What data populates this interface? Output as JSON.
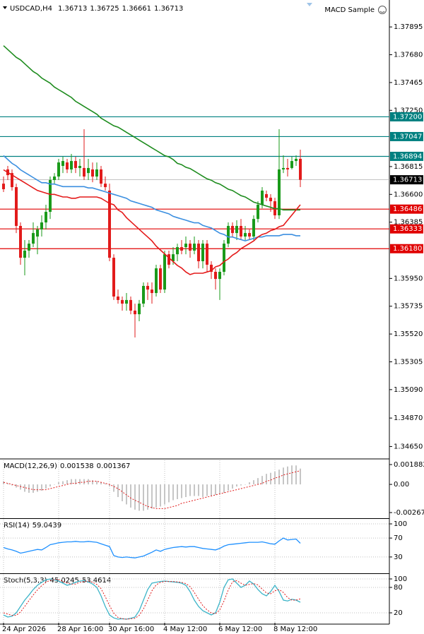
{
  "chart_data": [
    {
      "type": "candlestick",
      "title": "USDCAD,H4",
      "ohlc": [
        1.36713,
        1.36725,
        1.36661,
        1.36713
      ],
      "annotation": "MACD Sample",
      "categories": [
        "24 Apr 2026",
        null,
        null,
        null,
        null,
        null,
        null,
        null,
        null,
        null,
        null,
        null,
        null,
        "28 Apr 16:00",
        null,
        null,
        null,
        null,
        null,
        null,
        null,
        null,
        null,
        null,
        null,
        "30 Apr 16:00",
        null,
        null,
        null,
        null,
        null,
        null,
        null,
        null,
        null,
        null,
        null,
        null,
        "4 May 12:00",
        null,
        null,
        null,
        null,
        null,
        null,
        null,
        null,
        null,
        null,
        null,
        null,
        "6 May 12:00",
        null,
        null,
        null,
        null,
        null,
        null,
        null,
        null,
        null,
        null,
        null,
        null,
        "8 May 12:00",
        null,
        null,
        null,
        null,
        null,
        null
      ],
      "open": [
        1.36683,
        1.36793,
        1.36765,
        1.36656,
        1.36356,
        1.3611,
        1.36165,
        1.36219,
        1.36274,
        1.36329,
        1.36383,
        1.36465,
        1.36711,
        1.36738,
        1.3682,
        1.36847,
        1.36793,
        1.36858,
        1.36804,
        1.36804,
        1.36765,
        1.36793,
        1.36738,
        1.36793,
        1.36683,
        1.36629,
        1.3611,
        1.3581,
        1.35783,
        1.35755,
        1.35783,
        1.35701,
        1.35673,
        1.35755,
        1.35892,
        1.35864,
        1.35837,
        1.36028,
        1.35864,
        1.36137,
        1.36083,
        1.36137,
        1.36192,
        1.36192,
        1.36219,
        1.36165,
        1.36219,
        1.36083,
        1.36219,
        1.36056,
        1.36001,
        1.35946,
        1.36001,
        1.36219,
        1.36356,
        1.36301,
        1.36356,
        1.36274,
        1.36301,
        1.36274,
        1.3641,
        1.3652,
        1.36602,
        1.36574,
        1.36547,
        1.36438,
        1.36793,
        1.36804,
        1.36804,
        1.36858,
        1.36875
      ],
      "high": [
        1.36738,
        1.3682,
        1.36793,
        1.36683,
        1.36383,
        1.36247,
        1.36247,
        1.36383,
        1.36356,
        1.36438,
        1.3652,
        1.36738,
        1.36765,
        1.36875,
        1.36891,
        1.36875,
        1.36913,
        1.36891,
        1.36875,
        1.37104,
        1.36875,
        1.36847,
        1.36847,
        1.3682,
        1.36738,
        1.36683,
        1.36137,
        1.35864,
        1.3581,
        1.35837,
        1.3581,
        1.35755,
        1.35783,
        1.35919,
        1.35919,
        1.35919,
        1.36056,
        1.36056,
        1.36165,
        1.36165,
        1.36192,
        1.36219,
        1.36247,
        1.36274,
        1.36247,
        1.36274,
        1.36247,
        1.36247,
        1.36247,
        1.36083,
        1.36028,
        1.36028,
        1.36247,
        1.36383,
        1.36383,
        1.364,
        1.3641,
        1.36356,
        1.36329,
        1.36438,
        1.36547,
        1.36656,
        1.36629,
        1.36602,
        1.36574,
        1.37104,
        1.36902,
        1.36875,
        1.36891,
        1.36902,
        1.36946
      ],
      "low": [
        1.36618,
        1.36711,
        1.36629,
        1.36301,
        1.36056,
        1.35974,
        1.3611,
        1.36192,
        1.36137,
        1.36274,
        1.36329,
        1.3641,
        1.36683,
        1.36711,
        1.36765,
        1.36765,
        1.36765,
        1.36765,
        1.36738,
        1.36711,
        1.36711,
        1.36694,
        1.36711,
        1.36656,
        1.36629,
        1.36083,
        1.35783,
        1.35755,
        1.35701,
        1.35701,
        1.35673,
        1.35493,
        1.35619,
        1.35728,
        1.35783,
        1.35755,
        1.3581,
        1.35837,
        1.35837,
        1.36028,
        1.36056,
        1.36083,
        1.36137,
        1.36137,
        1.3611,
        1.36137,
        1.36028,
        1.36028,
        1.36001,
        1.35946,
        1.35864,
        1.35783,
        1.35974,
        1.36192,
        1.36274,
        1.36247,
        1.36247,
        1.36247,
        1.36247,
        1.36247,
        1.36383,
        1.36492,
        1.36547,
        1.36465,
        1.3641,
        1.3641,
        1.36765,
        1.36738,
        1.36793,
        1.3682,
        1.36656
      ],
      "close": [
        1.3664,
        1.36749,
        1.36656,
        1.36356,
        1.3611,
        1.36165,
        1.36219,
        1.36301,
        1.36329,
        1.36383,
        1.36465,
        1.36711,
        1.36738,
        1.36847,
        1.36858,
        1.36793,
        1.36858,
        1.36804,
        1.3682,
        1.36738,
        1.36804,
        1.36738,
        1.36793,
        1.36683,
        1.36656,
        1.3611,
        1.3581,
        1.35783,
        1.35755,
        1.35783,
        1.35701,
        1.35673,
        1.35755,
        1.35892,
        1.35864,
        1.35837,
        1.36028,
        1.35864,
        1.36137,
        1.36056,
        1.36137,
        1.36192,
        1.36165,
        1.36219,
        1.36165,
        1.36219,
        1.36083,
        1.36219,
        1.36056,
        1.36001,
        1.35946,
        1.36001,
        1.36219,
        1.36356,
        1.36301,
        1.36356,
        1.36274,
        1.36301,
        1.36274,
        1.3641,
        1.3652,
        1.36629,
        1.36574,
        1.36547,
        1.36438,
        1.36793,
        1.36804,
        1.36793,
        1.36858,
        1.36875,
        1.36713
      ],
      "up_color": "#1a9a1a",
      "down_color": "#e21b1b",
      "lines": [
        {
          "color": "#1e8c1e",
          "values": [
            1.3775,
            1.3772,
            1.3769,
            1.3766,
            1.3764,
            1.3761,
            1.3758,
            1.3755,
            1.3753,
            1.375,
            1.3748,
            1.3746,
            1.3743,
            1.3741,
            1.3739,
            1.3737,
            1.3735,
            1.3732,
            1.373,
            1.3728,
            1.3726,
            1.3724,
            1.3722,
            1.3719,
            1.3717,
            1.3715,
            1.3713,
            1.3712,
            1.371,
            1.3708,
            1.3706,
            1.3704,
            1.3702,
            1.37,
            1.3698,
            1.3696,
            1.3694,
            1.3692,
            1.369,
            1.3689,
            1.3687,
            1.3684,
            1.3683,
            1.3681,
            1.368,
            1.3678,
            1.3676,
            1.3674,
            1.3672,
            1.3671,
            1.3669,
            1.3668,
            1.3666,
            1.3664,
            1.3663,
            1.3661,
            1.3659,
            1.3658,
            1.3656,
            1.3654,
            1.3653,
            1.3652,
            1.3651,
            1.365,
            1.3649,
            1.3649,
            1.3648,
            1.3648,
            1.3648,
            1.3648,
            1.3648
          ]
        },
        {
          "color": "#3b8fe0",
          "values": [
            1.369,
            1.3687,
            1.3684,
            1.3682,
            1.3679,
            1.3677,
            1.3675,
            1.3673,
            1.3671,
            1.3669,
            1.3669,
            1.3668,
            1.3668,
            1.3667,
            1.3666,
            1.3666,
            1.3666,
            1.3666,
            1.3666,
            1.3666,
            1.3665,
            1.3665,
            1.3664,
            1.3663,
            1.3662,
            1.3661,
            1.366,
            1.3659,
            1.3658,
            1.3657,
            1.3655,
            1.3654,
            1.3653,
            1.3652,
            1.3651,
            1.365,
            1.3648,
            1.3647,
            1.3646,
            1.3645,
            1.3643,
            1.3642,
            1.3641,
            1.364,
            1.3639,
            1.3638,
            1.3638,
            1.3636,
            1.3635,
            1.3634,
            1.3632,
            1.363,
            1.3629,
            1.3627,
            1.3627,
            1.3626,
            1.3625,
            1.3624,
            1.3625,
            1.3626,
            1.3627,
            1.3627,
            1.3628,
            1.3628,
            1.3628,
            1.3628,
            1.3629,
            1.3629,
            1.3629,
            1.3628,
            1.3628
          ]
        },
        {
          "color": "#e41a1a",
          "values": [
            1.3679,
            1.3677,
            1.3675,
            1.3673,
            1.3671,
            1.3669,
            1.3667,
            1.3665,
            1.3663,
            1.3662,
            1.3661,
            1.366,
            1.366,
            1.3659,
            1.3658,
            1.3658,
            1.3657,
            1.3657,
            1.3658,
            1.3658,
            1.3658,
            1.3658,
            1.3658,
            1.3657,
            1.3655,
            1.3653,
            1.3652,
            1.3648,
            1.3646,
            1.3642,
            1.3639,
            1.3636,
            1.3633,
            1.363,
            1.3627,
            1.3624,
            1.362,
            1.3617,
            1.3614,
            1.3611,
            1.3608,
            1.3605,
            1.3603,
            1.36,
            1.3598,
            1.3599,
            1.3599,
            1.3599,
            1.36,
            1.3601,
            1.3604,
            1.3605,
            1.3608,
            1.361,
            1.3613,
            1.3615,
            1.3618,
            1.362,
            1.3622,
            1.3624,
            1.3627,
            1.3629,
            1.363,
            1.3632,
            1.3633,
            1.3635,
            1.3636,
            1.364,
            1.3644,
            1.3648,
            1.3652
          ]
        }
      ],
      "levels": [
        {
          "value": 1.372,
          "label": "1.37200",
          "color": "#008080"
        },
        {
          "value": 1.37047,
          "label": "1.37047",
          "color": "#008080"
        },
        {
          "value": 1.36894,
          "label": "1.36894",
          "color": "#008080"
        },
        {
          "value": 1.36486,
          "label": "1.36486",
          "color": "#e00000"
        },
        {
          "value": 1.36333,
          "label": "1.36333",
          "color": "#e00000"
        },
        {
          "value": 1.3618,
          "label": "1.36180",
          "color": "#e00000"
        }
      ],
      "last_price": 1.36713,
      "ylim": [
        1.34565,
        1.38076
      ],
      "yticks": [
        1.37895,
        {
          "value": 1.3768,
          "label": "1.37680"
        },
        1.37465,
        {
          "value": 1.3725,
          "label": "1.37250"
        },
        1.36815,
        {
          "value": 1.366,
          "label": "1.36600"
        },
        1.36385,
        {
          "value": 1.3595,
          "label": "1.35950"
        },
        1.35735,
        {
          "value": 1.3552,
          "label": "1.35520"
        },
        1.35305,
        {
          "value": 1.3509,
          "label": "1.35090"
        },
        {
          "value": 1.3487,
          "label": "1.34870"
        },
        {
          "value": 1.3465,
          "label": "1.34650"
        }
      ],
      "grid": false
    },
    {
      "type": "macd",
      "title": "MACD(12,26,9)",
      "readout": [
        0.001538,
        0.001367
      ],
      "color": "#a0a0a0",
      "signal_color": "#e21b1b",
      "values": [
        0.0003,
        0.0001,
        -0.0001,
        -0.0003,
        -0.0005,
        -0.0007,
        -0.0008,
        -0.0008,
        -0.0007,
        -0.0006,
        -0.0004,
        -0.0002,
        0,
        0.0002,
        0.0003,
        0.0004,
        0.0005,
        0.0005,
        0.0005,
        0.0005,
        0.0005,
        0.0004,
        0.0003,
        0.0002,
        0.0001,
        -0.0002,
        -0.0007,
        -0.0012,
        -0.0016,
        -0.0019,
        -0.0022,
        -0.0024,
        -0.0025,
        -0.0025,
        -0.0024,
        -0.0023,
        -0.0022,
        -0.0021,
        -0.0019,
        -0.0017,
        -0.0015,
        -0.0014,
        -0.0013,
        -0.0012,
        -0.0011,
        -0.0011,
        -0.0011,
        -0.0012,
        -0.0011,
        -0.0011,
        -0.001,
        -0.0009,
        -0.0008,
        -0.0006,
        -0.0004,
        -0.0002,
        -0.0001,
        0,
        0.0002,
        0.0004,
        0.0006,
        0.0008,
        0.001,
        0.0011,
        0.0012,
        0.0014,
        0.0016,
        0.0017,
        0.0018,
        0.0018,
        0.0015
      ],
      "signal": [
        0.0002,
        0.0001,
        0,
        -0.0001,
        -0.0002,
        -0.0003,
        -0.0004,
        -0.0005,
        -0.0005,
        -0.0005,
        -0.0005,
        -0.0004,
        -0.0003,
        -0.0002,
        -0.0001,
        0,
        0.0001,
        0.0001,
        0.0002,
        0.0002,
        0.0003,
        0.0003,
        0.0003,
        0.0002,
        0.0001,
        0,
        -0.0002,
        -0.0004,
        -0.0007,
        -0.001,
        -0.0013,
        -0.0015,
        -0.0017,
        -0.0019,
        -0.0021,
        -0.0022,
        -0.0023,
        -0.0023,
        -0.0023,
        -0.0022,
        -0.0021,
        -0.002,
        -0.0018,
        -0.0017,
        -0.0016,
        -0.0015,
        -0.0014,
        -0.0013,
        -0.0012,
        -0.0011,
        -0.001,
        -0.0009,
        -0.0008,
        -0.0007,
        -0.0006,
        -0.0005,
        -0.0004,
        -0.0003,
        -0.0002,
        -0.0001,
        0,
        0.0001,
        0.0003,
        0.0004,
        0.0006,
        0.0007,
        0.0009,
        0.001,
        0.0011,
        0.0012,
        0.0013
      ],
      "ylim": [
        -0.003144,
        0.002285
      ],
      "yticks": [
        0.001882,
        {
          "value": 0,
          "label": "0.00"
        },
        -0.002674
      ],
      "grid": false
    },
    {
      "type": "line",
      "title": "RSI(14)",
      "readout": [
        59.0439
      ],
      "color": "#1e90ff",
      "values": [
        50,
        47,
        45,
        42,
        38,
        40,
        42,
        44,
        46,
        45,
        50,
        56,
        58,
        60,
        61,
        62,
        62,
        63,
        62,
        62,
        63,
        62,
        61,
        58,
        55,
        52,
        33,
        30,
        29,
        30,
        29,
        28,
        30,
        32,
        36,
        40,
        45,
        42,
        46,
        48,
        50,
        51,
        52,
        51,
        52,
        52,
        50,
        48,
        47,
        46,
        45,
        48,
        53,
        56,
        57,
        58,
        59,
        60,
        61,
        61,
        61,
        62,
        60,
        58,
        57,
        64,
        70,
        66,
        67,
        68,
        59
      ],
      "ylim": [
        -3,
        109
      ],
      "yticks": [
        100,
        70,
        30
      ],
      "grid": true
    },
    {
      "type": "stoch",
      "title": "Stoch(5,3,3)",
      "readout": [
        45.0245,
        53.4614
      ],
      "color": "#3cb4c8",
      "signal_color": "#e21b1b",
      "values": [
        15,
        10,
        12,
        20,
        35,
        50,
        62,
        75,
        85,
        92,
        98,
        100,
        98,
        95,
        90,
        85,
        88,
        92,
        95,
        96,
        93,
        88,
        80,
        60,
        35,
        15,
        8,
        5,
        6,
        5,
        7,
        10,
        25,
        50,
        75,
        90,
        92,
        94,
        95,
        94,
        93,
        92,
        90,
        85,
        70,
        50,
        35,
        25,
        20,
        15,
        20,
        45,
        80,
        98,
        100,
        90,
        80,
        85,
        95,
        88,
        75,
        65,
        60,
        70,
        85,
        70,
        50,
        48,
        52,
        50,
        45
      ],
      "signal": [
        20,
        17,
        14,
        14,
        22,
        35,
        49,
        62,
        74,
        84,
        92,
        97,
        99,
        98,
        94,
        90,
        88,
        88,
        92,
        94,
        95,
        92,
        87,
        77,
        58,
        37,
        19,
        9,
        6,
        5,
        6,
        7,
        14,
        29,
        50,
        72,
        86,
        92,
        94,
        94,
        94,
        93,
        92,
        89,
        82,
        68,
        52,
        37,
        27,
        20,
        18,
        27,
        48,
        74,
        93,
        96,
        90,
        85,
        87,
        89,
        86,
        76,
        67,
        65,
        72,
        75,
        68,
        56,
        50,
        50,
        53
      ],
      "ylim": [
        -3.3,
        110
      ],
      "yticks": [
        100,
        80,
        20
      ],
      "grid": true
    }
  ]
}
